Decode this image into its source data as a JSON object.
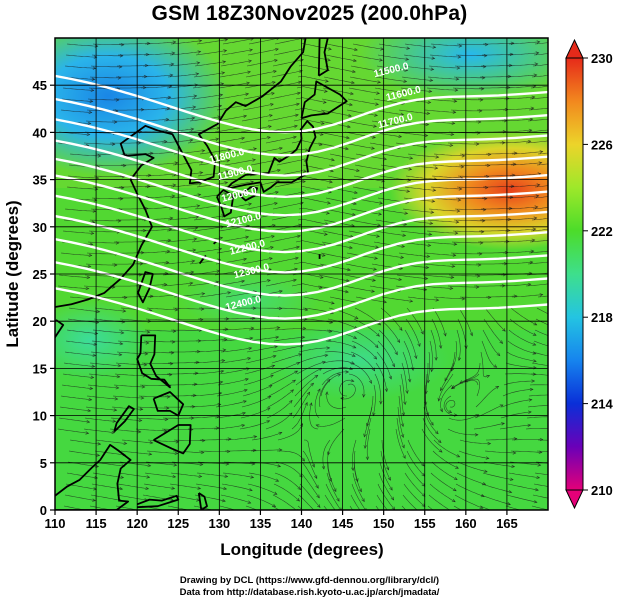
{
  "title": "GSM 18Z30Nov2025 (200.0hPa)",
  "map": {
    "x_label": "Longitude (degrees)",
    "y_label": "Latitude  (degrees)",
    "lon_ticks": [
      "110",
      "115",
      "120",
      "125",
      "130",
      "135",
      "140",
      "145",
      "150",
      "155",
      "160",
      "165"
    ],
    "lat_ticks": [
      "0",
      "5",
      "10",
      "15",
      "20",
      "25",
      "30",
      "35",
      "40",
      "45"
    ],
    "lon_range": [
      110,
      170
    ],
    "lat_range": [
      0,
      50
    ],
    "grid": true,
    "layers": [
      "temperature shading",
      "geopotential height contours",
      "wind streamlines",
      "coastlines"
    ]
  },
  "colorbar": {
    "labels": [
      "230",
      "226",
      "222",
      "218",
      "214",
      "210"
    ],
    "range": [
      210,
      230
    ],
    "colors": [
      "#e40078",
      "#4a00c0",
      "#0a3ee0",
      "#1e9cf0",
      "#26cfd6",
      "#4ee07a",
      "#54dd2c",
      "#8ee82a",
      "#d8e82a",
      "#f4b62a",
      "#f06e1a",
      "#e62a1a"
    ]
  },
  "contour_labels": [
    {
      "text": "11500.0"
    },
    {
      "text": "11600.0"
    },
    {
      "text": "11700.0"
    },
    {
      "text": "11800.0"
    },
    {
      "text": "11900.0"
    },
    {
      "text": "12000.0"
    },
    {
      "text": "12100.0"
    },
    {
      "text": "12200.0"
    },
    {
      "text": "12300.0"
    },
    {
      "text": "12400.0"
    }
  ],
  "credits": {
    "line1": "Drawing by DCL (https://www.gfd-dennou.org/library/dcl/)",
    "line2": "Data from http://database.rish.kyoto-u.ac.jp/arch/jmadata/"
  }
}
